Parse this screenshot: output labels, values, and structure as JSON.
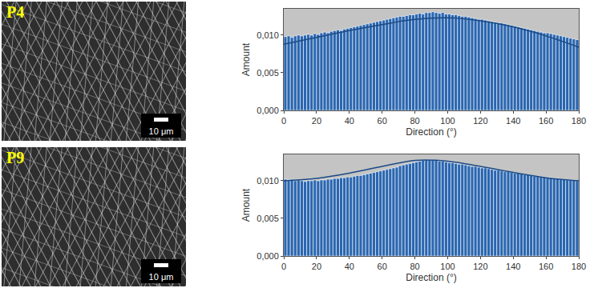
{
  "images": [
    {
      "label": "P4",
      "scale_bar": "10 μm"
    },
    {
      "label": "P9",
      "scale_bar": "10 μm"
    }
  ],
  "chart_data": [
    {
      "type": "histogram",
      "x_label": "Direction (°)",
      "y_label": "Amount",
      "color": "#2a66b0",
      "grid": false,
      "bins": [
        0,
        2,
        4,
        6,
        8,
        10,
        12,
        14,
        16,
        18,
        20,
        22,
        24,
        26,
        28,
        30,
        32,
        34,
        36,
        38,
        40,
        42,
        44,
        46,
        48,
        50,
        52,
        54,
        56,
        58,
        60,
        62,
        64,
        66,
        68,
        70,
        72,
        74,
        76,
        78,
        80,
        82,
        84,
        86,
        88,
        90,
        92,
        94,
        96,
        98,
        100,
        102,
        104,
        106,
        108,
        110,
        112,
        114,
        116,
        118,
        120,
        122,
        124,
        126,
        128,
        130,
        132,
        134,
        136,
        138,
        140,
        142,
        144,
        146,
        148,
        150,
        152,
        154,
        156,
        158,
        160,
        162,
        164,
        166,
        168,
        170,
        172,
        174,
        176,
        178,
        180
      ],
      "values": [
        0.0098,
        0.0099,
        0.0097,
        0.0099,
        0.01,
        0.0099,
        0.01,
        0.0101,
        0.01,
        0.0102,
        0.0101,
        0.0103,
        0.0104,
        0.0103,
        0.0105,
        0.0106,
        0.0107,
        0.0106,
        0.0108,
        0.0109,
        0.011,
        0.0111,
        0.0112,
        0.0113,
        0.0114,
        0.0115,
        0.0116,
        0.0117,
        0.0118,
        0.0119,
        0.012,
        0.0121,
        0.0122,
        0.0123,
        0.0124,
        0.0125,
        0.0125,
        0.0126,
        0.0127,
        0.0127,
        0.0128,
        0.0129,
        0.0128,
        0.013,
        0.013,
        0.0131,
        0.013,
        0.0129,
        0.013,
        0.0128,
        0.0128,
        0.0127,
        0.0127,
        0.0126,
        0.0125,
        0.0125,
        0.0124,
        0.0123,
        0.0122,
        0.0121,
        0.0121,
        0.012,
        0.0119,
        0.0118,
        0.0117,
        0.0116,
        0.0116,
        0.0115,
        0.0114,
        0.0113,
        0.0112,
        0.0111,
        0.011,
        0.0109,
        0.0108,
        0.0107,
        0.0106,
        0.0105,
        0.0104,
        0.0103,
        0.0103,
        0.0102,
        0.0101,
        0.01,
        0.0099,
        0.0098,
        0.0097,
        0.0096,
        0.0095,
        0.0094
      ],
      "fit": {
        "x": [
          0,
          20,
          40,
          60,
          80,
          100,
          120,
          140,
          160,
          180
        ],
        "values": [
          0.0088,
          0.0097,
          0.0106,
          0.0114,
          0.0121,
          0.0123,
          0.0119,
          0.0111,
          0.0099,
          0.0084
        ],
        "color": "#1b4a85",
        "line_style": "solid"
      },
      "xlim": [
        0,
        180
      ],
      "xticks": [
        0,
        20,
        40,
        60,
        80,
        100,
        120,
        140,
        160,
        180
      ],
      "ylim": [
        0,
        0.0135
      ],
      "yticks": [
        {
          "value": 0,
          "label": "0,000"
        },
        {
          "value": 0.005,
          "label": "0,005"
        },
        {
          "value": 0.01,
          "label": "0,010"
        }
      ]
    },
    {
      "type": "histogram",
      "x_label": "Direction (°)",
      "y_label": "Amount",
      "color": "#2a66b0",
      "grid": false,
      "bins": [
        0,
        2,
        4,
        6,
        8,
        10,
        12,
        14,
        16,
        18,
        20,
        22,
        24,
        26,
        28,
        30,
        32,
        34,
        36,
        38,
        40,
        42,
        44,
        46,
        48,
        50,
        52,
        54,
        56,
        58,
        60,
        62,
        64,
        66,
        68,
        70,
        72,
        74,
        76,
        78,
        80,
        82,
        84,
        86,
        88,
        90,
        92,
        94,
        96,
        98,
        100,
        102,
        104,
        106,
        108,
        110,
        112,
        114,
        116,
        118,
        120,
        122,
        124,
        126,
        128,
        130,
        132,
        134,
        136,
        138,
        140,
        142,
        144,
        146,
        148,
        150,
        152,
        154,
        156,
        158,
        160,
        162,
        164,
        166,
        168,
        170,
        172,
        174,
        176,
        178,
        180
      ],
      "values": [
        0.0102,
        0.0101,
        0.0102,
        0.01,
        0.0101,
        0.01,
        0.0099,
        0.01,
        0.01,
        0.0101,
        0.01,
        0.0101,
        0.0101,
        0.0102,
        0.0102,
        0.0103,
        0.0103,
        0.0104,
        0.0104,
        0.0105,
        0.0105,
        0.0106,
        0.0107,
        0.0107,
        0.0108,
        0.0109,
        0.011,
        0.0111,
        0.0112,
        0.0113,
        0.0114,
        0.0115,
        0.0116,
        0.0117,
        0.0118,
        0.012,
        0.0121,
        0.0122,
        0.0123,
        0.0124,
        0.0125,
        0.0126,
        0.0127,
        0.0128,
        0.0128,
        0.0127,
        0.0127,
        0.0126,
        0.0126,
        0.0125,
        0.0124,
        0.0124,
        0.0123,
        0.0122,
        0.0122,
        0.0121,
        0.012,
        0.0119,
        0.0119,
        0.0118,
        0.0117,
        0.0117,
        0.0116,
        0.0115,
        0.0114,
        0.0114,
        0.0113,
        0.0112,
        0.0112,
        0.0111,
        0.011,
        0.011,
        0.0109,
        0.0108,
        0.0108,
        0.0107,
        0.0106,
        0.0106,
        0.0105,
        0.0105,
        0.0104,
        0.0104,
        0.0103,
        0.0103,
        0.0102,
        0.0102,
        0.0101,
        0.0101,
        0.0101,
        0.01
      ],
      "fit": {
        "x": [
          0,
          20,
          40,
          60,
          80,
          100,
          120,
          140,
          160,
          180
        ],
        "values": [
          0.01,
          0.0103,
          0.011,
          0.0119,
          0.0127,
          0.0126,
          0.0119,
          0.0111,
          0.0104,
          0.01
        ],
        "color": "#1b4a85",
        "line_style": "solid"
      },
      "xlim": [
        0,
        180
      ],
      "xticks": [
        0,
        20,
        40,
        60,
        80,
        100,
        120,
        140,
        160,
        180
      ],
      "ylim": [
        0,
        0.0135
      ],
      "yticks": [
        {
          "value": 0,
          "label": "0,000"
        },
        {
          "value": 0.005,
          "label": "0,005"
        },
        {
          "value": 0.01,
          "label": "0,010"
        }
      ]
    }
  ]
}
